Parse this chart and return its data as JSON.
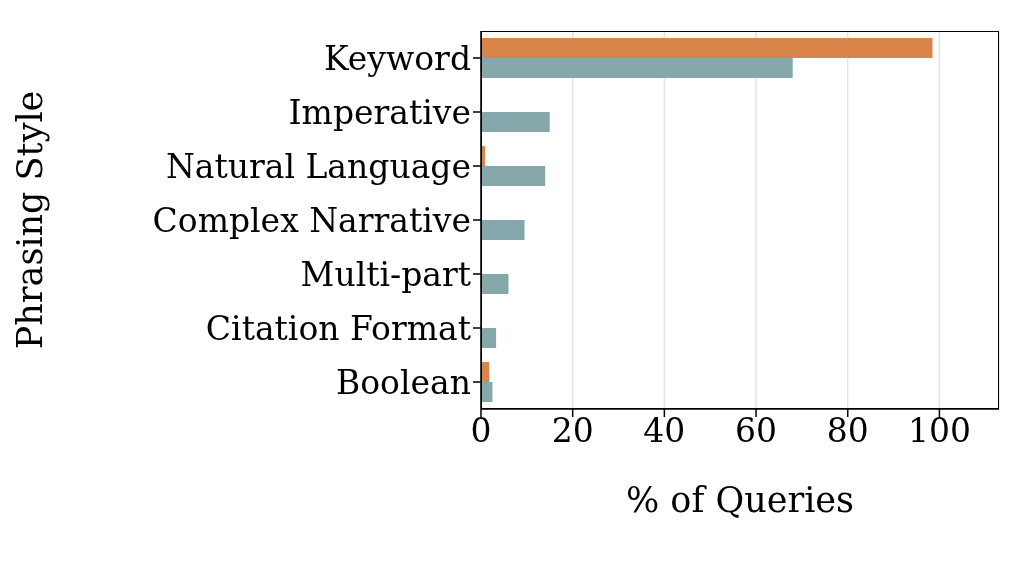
{
  "chart_data": {
    "type": "bar",
    "orientation": "horizontal",
    "categories": [
      "Keyword",
      "Imperative",
      "Natural Language",
      "Complex Narrative",
      "Multi-part",
      "Citation Format",
      "Boolean"
    ],
    "series": [
      {
        "color": "#d9844a",
        "values": [
          98.5,
          0,
          0.9,
          0,
          0,
          0,
          1.8
        ]
      },
      {
        "color": "#87a8aa",
        "values": [
          68,
          15,
          14,
          9.5,
          6,
          3.3,
          2.5
        ]
      }
    ],
    "xlabel": "% of Queries",
    "ylabel": "Phrasing Style",
    "xlim": [
      0,
      113
    ],
    "xticks": [
      0,
      20,
      40,
      60,
      80,
      100
    ],
    "grid": "x",
    "legend": false
  }
}
